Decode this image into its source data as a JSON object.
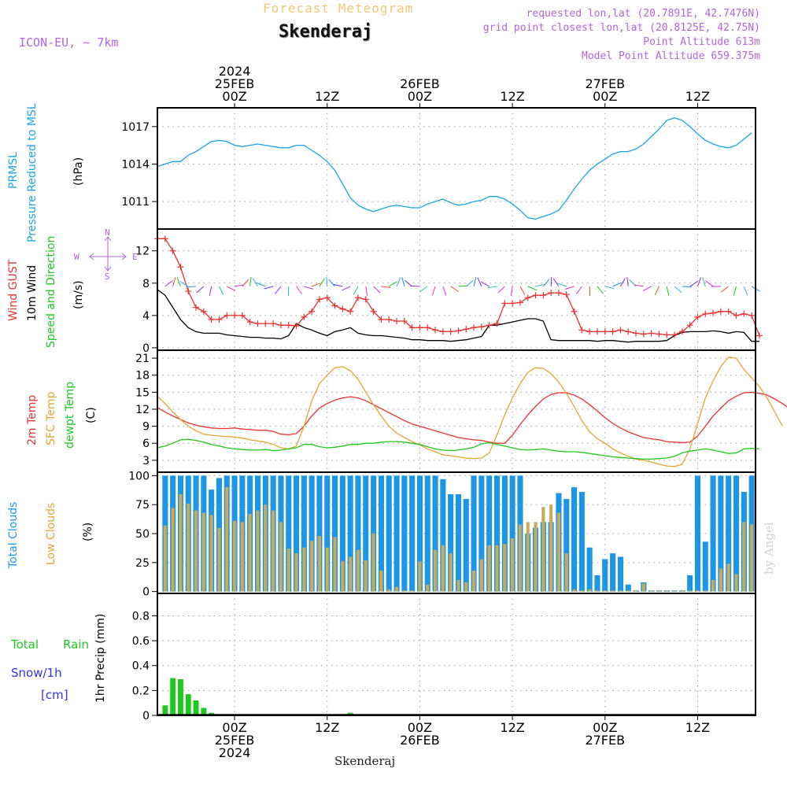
{
  "header": {
    "super_title": "Forecast Meteogram",
    "location": "Skenderaj",
    "model": "ICON-EU, ~ 7km",
    "requested": "requested lon,lat (20.7891E, 42.7476N)",
    "grid_point": "grid point closest lon,lat (20.8125E, 42.75N)",
    "point_altitude": "Point Altitude 613m",
    "model_altitude": "Model Point Altitude 659.375m",
    "watermark": "by Angel",
    "footer_location": "Skenderaj"
  },
  "time_axis": {
    "top_ticks": [
      {
        "hour": 0,
        "lines": [
          "2024",
          "25FEB",
          "00Z"
        ]
      },
      {
        "hour": 12,
        "lines": [
          "12Z"
        ]
      },
      {
        "hour": 24,
        "lines": [
          "26FEB",
          "00Z"
        ]
      },
      {
        "hour": 36,
        "lines": [
          "12Z"
        ]
      },
      {
        "hour": 48,
        "lines": [
          "27FEB",
          "00Z"
        ]
      },
      {
        "hour": 60,
        "lines": [
          "12Z"
        ]
      }
    ],
    "bottom_ticks": [
      {
        "hour": 0,
        "lines": [
          "00Z",
          "25FEB",
          "2024"
        ]
      },
      {
        "hour": 12,
        "lines": [
          "12Z"
        ]
      },
      {
        "hour": 24,
        "lines": [
          "00Z",
          "26FEB"
        ]
      },
      {
        "hour": 36,
        "lines": [
          "12Z"
        ]
      },
      {
        "hour": 48,
        "lines": [
          "00Z",
          "27FEB"
        ]
      },
      {
        "hour": 60,
        "lines": [
          "12Z"
        ]
      }
    ]
  },
  "panels": {
    "pressure": {
      "labels": [
        "PRMSL",
        "Pressure Reduced to MSL"
      ],
      "unit": "(hPa)"
    },
    "wind": {
      "labels": [
        "Wind GUST",
        "10m Wind",
        "Speed and Direction"
      ],
      "unit": "(m/s)",
      "compass": {
        "n": "N",
        "s": "S",
        "w": "W",
        "e": "E"
      }
    },
    "temp": {
      "labels": [
        "2m Temp",
        "SFC Temp",
        "dewpt Temp"
      ],
      "unit": "(C)"
    },
    "clouds": {
      "labels": [
        "Total Clouds",
        "Low Clouds"
      ],
      "unit": "(%)"
    },
    "precip": {
      "labels": [
        "Total",
        "Rain",
        "Snow/1h",
        "[cm]"
      ],
      "unit": "1hr Precip (mm)"
    }
  },
  "colors": {
    "pressure": "#1aa5e6",
    "gust": "#e83232",
    "wind": "#000000",
    "temp2m": "#e83232",
    "sfc": "#e6a532",
    "dewpt": "#1ec81e",
    "total_clouds": "#1e96e6",
    "low_clouds": "#c8aa5a",
    "rain": "#1ec81e",
    "snow": "#3232e6",
    "label_purple": "#b464dc",
    "title_gold": "#f0c878"
  },
  "chart_data": [
    {
      "type": "line",
      "name": "PRMSL",
      "x_start_hour": -10,
      "x_step_hours": 1,
      "ylim": [
        1008.8,
        1018.5
      ],
      "yticks": [
        1011,
        1014,
        1017
      ],
      "values": [
        1013.8,
        1014.0,
        1014.2,
        1014.2,
        1014.7,
        1015.0,
        1015.4,
        1015.8,
        1015.9,
        1015.8,
        1015.5,
        1015.4,
        1015.5,
        1015.6,
        1015.5,
        1015.4,
        1015.3,
        1015.3,
        1015.5,
        1015.5,
        1015.1,
        1014.7,
        1014.2,
        1013.5,
        1012.4,
        1011.3,
        1010.7,
        1010.4,
        1010.2,
        1010.4,
        1010.6,
        1010.7,
        1010.6,
        1010.5,
        1010.5,
        1010.8,
        1011.0,
        1011.2,
        1010.9,
        1010.7,
        1010.8,
        1011.0,
        1011.1,
        1011.4,
        1011.4,
        1011.2,
        1010.8,
        1010.3,
        1009.7,
        1009.6,
        1009.8,
        1010.0,
        1010.3,
        1011.1,
        1012.0,
        1012.8,
        1013.5,
        1014.0,
        1014.4,
        1014.8,
        1015.0,
        1015.0,
        1015.2,
        1015.6,
        1016.2,
        1016.8,
        1017.5,
        1017.7,
        1017.5,
        1017.0,
        1016.4,
        1015.9,
        1015.6,
        1015.4,
        1015.3,
        1015.5,
        1016.0,
        1016.5
      ]
    },
    {
      "type": "line",
      "name": "Wind",
      "x_start_hour": -10,
      "x_step_hours": 1,
      "ylim": [
        -0.3,
        14.7
      ],
      "yticks": [
        0,
        4,
        8,
        12
      ],
      "series": [
        {
          "name": "Wind GUST",
          "values": [
            13.5,
            13.5,
            12.0,
            10.0,
            7.0,
            5.0,
            4.5,
            3.5,
            3.5,
            4.0,
            4.0,
            4.0,
            3.2,
            3.0,
            3.0,
            3.0,
            2.8,
            2.8,
            2.7,
            3.8,
            4.5,
            6.0,
            6.2,
            5.2,
            4.8,
            4.5,
            6.2,
            6.0,
            4.5,
            3.5,
            3.5,
            3.3,
            3.3,
            2.5,
            2.5,
            2.5,
            2.2,
            2.0,
            2.0,
            2.1,
            2.3,
            2.5,
            2.6,
            2.8,
            3.0,
            5.5,
            5.5,
            5.6,
            6.2,
            6.5,
            6.5,
            6.8,
            6.8,
            6.6,
            4.5,
            2.2,
            2.0,
            2.0,
            2.0,
            2.0,
            2.2,
            2.0,
            1.8,
            1.7,
            1.8,
            1.7,
            1.6,
            1.6,
            2.0,
            2.8,
            3.8,
            4.2,
            4.3,
            4.5,
            4.5,
            4.0,
            4.2,
            4.0,
            1.5
          ]
        },
        {
          "name": "10m Wind",
          "values": [
            7.2,
            6.5,
            5.0,
            3.5,
            2.5,
            2.0,
            1.8,
            1.8,
            1.8,
            1.6,
            1.5,
            1.4,
            1.3,
            1.3,
            1.2,
            1.2,
            1.1,
            1.5,
            3.0,
            2.5,
            2.2,
            1.8,
            1.5,
            2.0,
            2.2,
            2.5,
            1.8,
            1.6,
            1.5,
            1.5,
            1.4,
            1.3,
            1.2,
            1.0,
            1.0,
            0.9,
            0.9,
            0.9,
            0.8,
            0.9,
            1.0,
            1.2,
            1.4,
            2.8,
            2.8,
            3.0,
            3.2,
            3.4,
            3.6,
            3.6,
            3.3,
            1.0,
            0.9,
            0.9,
            0.9,
            0.9,
            0.9,
            0.8,
            0.9,
            0.9,
            0.8,
            0.7,
            0.8,
            0.8,
            0.8,
            0.8,
            0.9,
            1.5,
            1.9,
            2.0,
            2.0,
            2.0,
            2.1,
            2.0,
            1.8,
            2.0,
            1.9,
            0.8,
            0.8
          ]
        }
      ]
    },
    {
      "type": "line",
      "name": "Temperature",
      "x_start_hour": -10,
      "x_step_hours": 1,
      "ylim": [
        0.9,
        22.4
      ],
      "yticks": [
        3,
        6,
        9,
        12,
        15,
        18,
        21
      ],
      "series": [
        {
          "name": "2m Temp",
          "values": [
            12.3,
            11.5,
            10.8,
            10.2,
            9.6,
            9.2,
            8.9,
            8.7,
            8.6,
            8.6,
            8.7,
            8.5,
            8.4,
            8.3,
            8.3,
            8.1,
            7.6,
            7.5,
            7.7,
            9.0,
            10.8,
            12.2,
            13.0,
            13.6,
            14.0,
            14.2,
            14.0,
            13.5,
            12.8,
            12.1,
            11.4,
            10.7,
            10.0,
            9.4,
            9.0,
            8.6,
            8.2,
            7.8,
            7.4,
            7.0,
            6.8,
            6.6,
            6.5,
            6.2,
            6.0,
            6.0,
            7.4,
            9.3,
            11.0,
            12.5,
            13.8,
            14.6,
            14.9,
            14.9,
            14.5,
            13.8,
            12.8,
            11.7,
            10.5,
            9.5,
            8.7,
            8.0,
            7.5,
            7.0,
            6.8,
            6.6,
            6.3,
            6.2,
            6.1,
            6.2,
            7.3,
            9.0,
            10.8,
            12.2,
            13.5,
            14.3,
            14.9,
            15.0,
            14.8,
            14.5,
            13.8,
            13.0,
            12.0
          ]
        },
        {
          "name": "SFC Temp",
          "values": [
            14.3,
            13.0,
            11.5,
            10.2,
            9.0,
            8.2,
            7.6,
            7.4,
            7.3,
            7.2,
            7.1,
            6.9,
            6.6,
            6.4,
            6.2,
            5.8,
            5.2,
            5.0,
            5.5,
            9.0,
            13.5,
            16.5,
            18.0,
            19.3,
            19.5,
            18.8,
            17.3,
            15.0,
            12.8,
            10.8,
            9.0,
            7.8,
            7.0,
            6.3,
            5.7,
            5.0,
            4.5,
            4.0,
            3.8,
            3.6,
            3.4,
            3.3,
            3.4,
            4.3,
            7.5,
            11.0,
            14.0,
            16.5,
            18.5,
            19.3,
            19.2,
            18.3,
            16.8,
            14.8,
            12.5,
            10.0,
            8.0,
            6.8,
            6.0,
            5.0,
            4.3,
            3.7,
            3.2,
            3.0,
            2.7,
            2.3,
            2.0,
            1.9,
            2.3,
            5.0,
            9.5,
            14.0,
            17.0,
            19.5,
            21.2,
            21.0,
            19.0,
            17.5,
            16.0,
            14.0,
            11.5,
            9.0
          ]
        },
        {
          "name": "dewpt Temp",
          "values": [
            5.2,
            5.5,
            6.0,
            6.6,
            6.7,
            6.5,
            6.2,
            5.8,
            5.5,
            5.2,
            5.0,
            4.9,
            4.8,
            4.8,
            4.9,
            4.7,
            4.8,
            5.0,
            5.2,
            5.8,
            5.8,
            5.4,
            5.2,
            5.3,
            5.5,
            5.8,
            5.8,
            6.0,
            6.0,
            6.2,
            6.3,
            6.3,
            6.2,
            6.0,
            5.8,
            5.4,
            5.0,
            4.8,
            4.7,
            4.8,
            5.0,
            5.3,
            5.9,
            6.1,
            5.8,
            5.5,
            5.2,
            4.9,
            4.8,
            4.9,
            5.0,
            4.8,
            4.6,
            4.5,
            4.5,
            4.4,
            4.2,
            4.0,
            3.8,
            3.6,
            3.5,
            3.4,
            3.3,
            3.2,
            3.2,
            3.3,
            3.4,
            3.7,
            4.3,
            4.6,
            4.8,
            5.0,
            4.8,
            4.5,
            4.2,
            4.3,
            5.0,
            5.1,
            5.0
          ]
        }
      ]
    },
    {
      "type": "bar",
      "name": "Clouds",
      "x_start_hour": -10,
      "x_step_hours": 1,
      "ylim": [
        -1.6,
        103
      ],
      "yticks": [
        0,
        25,
        50,
        75,
        100
      ],
      "series": [
        {
          "name": "Total Clouds",
          "values": [
            100,
            100,
            100,
            100,
            100,
            100,
            100,
            88,
            98,
            100,
            100,
            100,
            100,
            100,
            100,
            100,
            100,
            100,
            100,
            100,
            100,
            100,
            100,
            100,
            100,
            100,
            100,
            100,
            100,
            100,
            100,
            100,
            100,
            100,
            100,
            100,
            100,
            97,
            84,
            84,
            80,
            100,
            100,
            100,
            100,
            100,
            100,
            100,
            50,
            55,
            60,
            60,
            85,
            80,
            90,
            86,
            38,
            14,
            28,
            33,
            30,
            6,
            1,
            8,
            1,
            1,
            1,
            1,
            1,
            14,
            100,
            43,
            100,
            100,
            100,
            100,
            86,
            100,
            100,
            100,
            100,
            45
          ]
        },
        {
          "name": "Low Clouds",
          "values": [
            45,
            57,
            72,
            84,
            76,
            70,
            68,
            66,
            55,
            90,
            61,
            60,
            67,
            70,
            75,
            70,
            60,
            37,
            33,
            38,
            44,
            48,
            38,
            47,
            26,
            30,
            36,
            27,
            50,
            18,
            2,
            4,
            1,
            1,
            26,
            6,
            36,
            40,
            33,
            10,
            8,
            18,
            28,
            40,
            40,
            41,
            46,
            58,
            60,
            60,
            73,
            75,
            68,
            33,
            2,
            1,
            2,
            1,
            1,
            1,
            1,
            1,
            1,
            7,
            1,
            1,
            1,
            1,
            1,
            1,
            1,
            1,
            10,
            20,
            24,
            15,
            60,
            58,
            20,
            22,
            25,
            2
          ]
        }
      ]
    },
    {
      "type": "bar",
      "name": "Precip",
      "x_start_hour": -10,
      "x_step_hours": 1,
      "ylim": [
        0,
        0.98
      ],
      "yticks": [
        0,
        0.2,
        0.4,
        0.6,
        0.8
      ],
      "ytick_labels": [
        "0",
        "0.2",
        "0.4",
        "0.6",
        "0.8"
      ],
      "series": [
        {
          "name": "Total Rain",
          "values": [
            0.03,
            0.08,
            0.3,
            0.29,
            0.17,
            0.12,
            0.06,
            0.02,
            0,
            0,
            0,
            0,
            0,
            0,
            0,
            0,
            0,
            0,
            0,
            0,
            0,
            0,
            0,
            0,
            0,
            0.02,
            0,
            0,
            0,
            0,
            0,
            0,
            0,
            0,
            0,
            0,
            0,
            0,
            0,
            0,
            0,
            0,
            0,
            0,
            0,
            0,
            0,
            0,
            0,
            0,
            0,
            0,
            0,
            0,
            0,
            0,
            0,
            0,
            0,
            0,
            0,
            0,
            0,
            0,
            0,
            0,
            0,
            0,
            0,
            0,
            0,
            0,
            0,
            0,
            0,
            0,
            0,
            0,
            0,
            0,
            0
          ]
        },
        {
          "name": "Snow/1h",
          "values": []
        }
      ]
    }
  ]
}
